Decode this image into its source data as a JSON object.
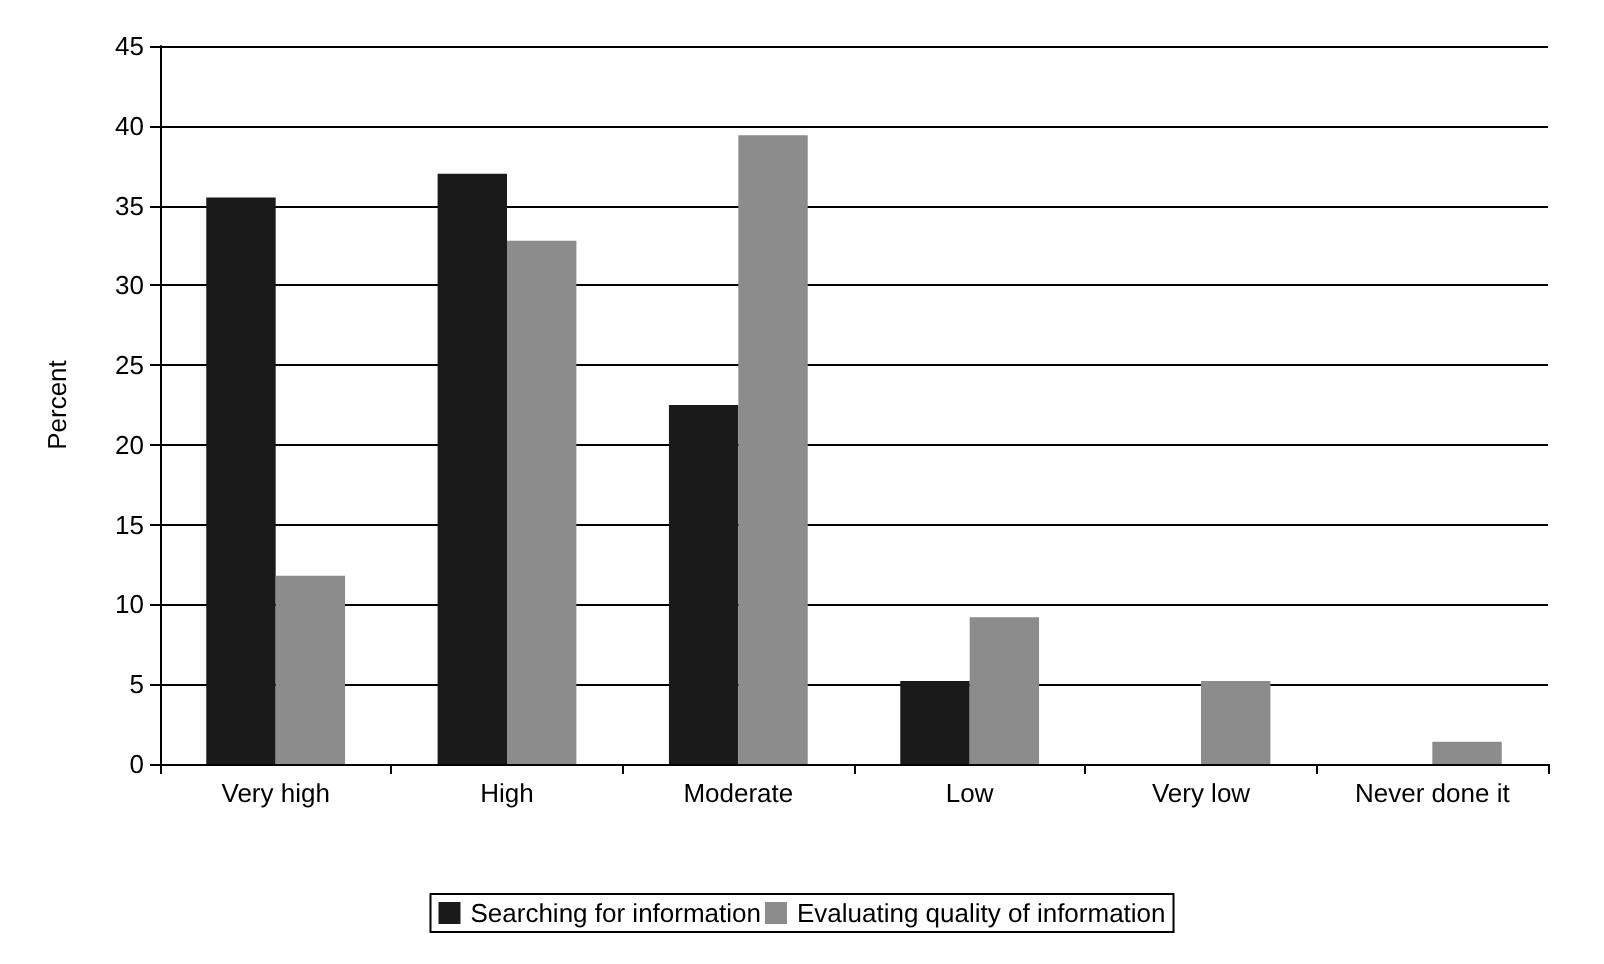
{
  "chart_data": {
    "type": "bar",
    "ylabel": "Percent",
    "categories": [
      "Very high",
      "High",
      "Moderate",
      "Low",
      "Very low",
      "Never done it"
    ],
    "series": [
      {
        "name": "Searching for information",
        "color": "#1a1a1a",
        "values": [
          35.5,
          37,
          22.5,
          5.2,
          0,
          0
        ]
      },
      {
        "name": "Evaluating quality of information",
        "color": "#8c8c8c",
        "values": [
          11.8,
          32.8,
          39.4,
          9.2,
          5.2,
          1.4
        ]
      }
    ],
    "ylim": [
      0,
      45
    ],
    "yticks": [
      0,
      5,
      10,
      15,
      20,
      25,
      30,
      35,
      40,
      45
    ],
    "grid": "y",
    "legend": "bottom"
  }
}
